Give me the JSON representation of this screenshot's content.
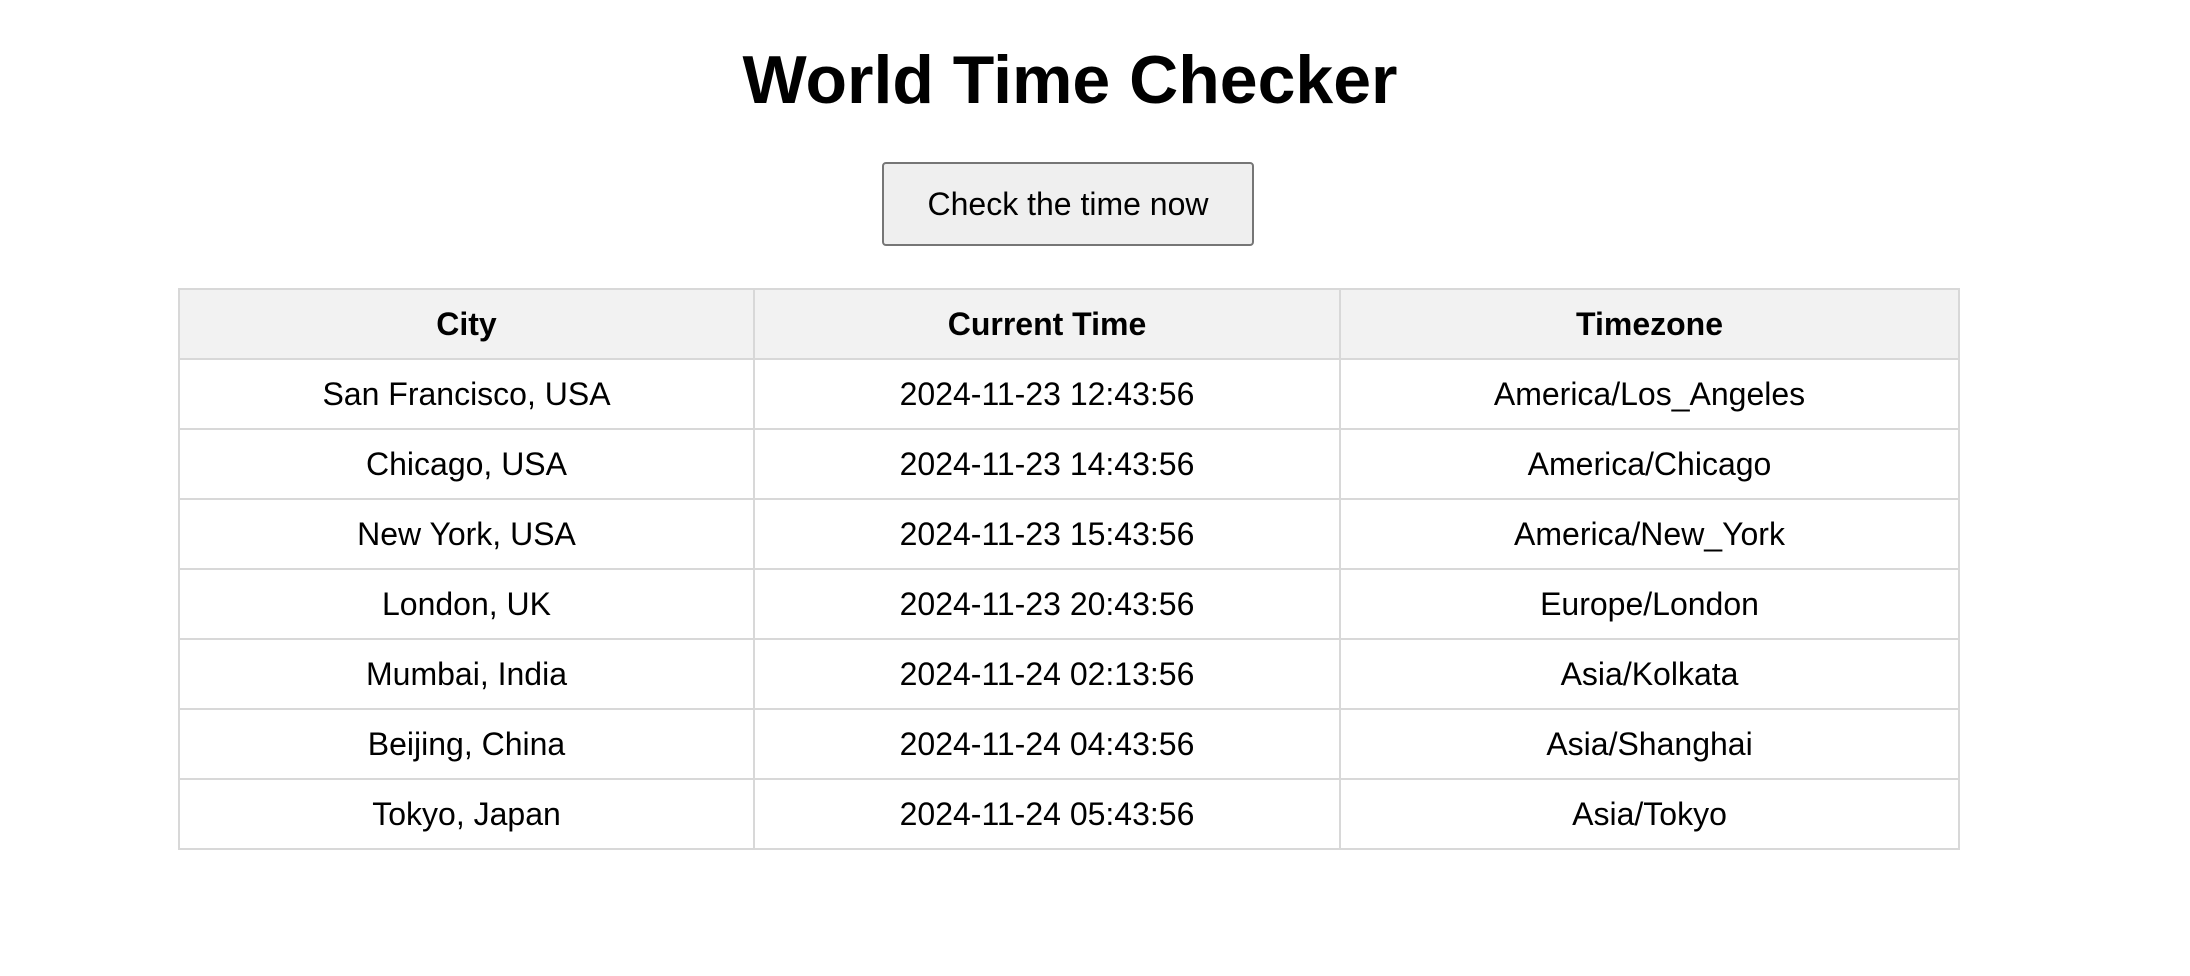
{
  "page": {
    "title": "World Time Checker",
    "check_button_label": "Check the time now"
  },
  "table": {
    "headers": {
      "city": "City",
      "current_time": "Current Time",
      "timezone": "Timezone"
    },
    "rows": [
      {
        "city": "San Francisco, USA",
        "current_time": "2024-11-23 12:43:56",
        "timezone": "America/Los_Angeles"
      },
      {
        "city": "Chicago, USA",
        "current_time": "2024-11-23 14:43:56",
        "timezone": "America/Chicago"
      },
      {
        "city": "New York, USA",
        "current_time": "2024-11-23 15:43:56",
        "timezone": "America/New_York"
      },
      {
        "city": "London, UK",
        "current_time": "2024-11-23 20:43:56",
        "timezone": "Europe/London"
      },
      {
        "city": "Mumbai, India",
        "current_time": "2024-11-24 02:13:56",
        "timezone": "Asia/Kolkata"
      },
      {
        "city": "Beijing, China",
        "current_time": "2024-11-24 04:43:56",
        "timezone": "Asia/Shanghai"
      },
      {
        "city": "Tokyo, Japan",
        "current_time": "2024-11-24 05:43:56",
        "timezone": "Asia/Tokyo"
      }
    ]
  },
  "colors": {
    "header_background": "#f2f2f2",
    "border": "#d8d8d8",
    "button_background": "#efefef",
    "button_border": "#767676"
  }
}
